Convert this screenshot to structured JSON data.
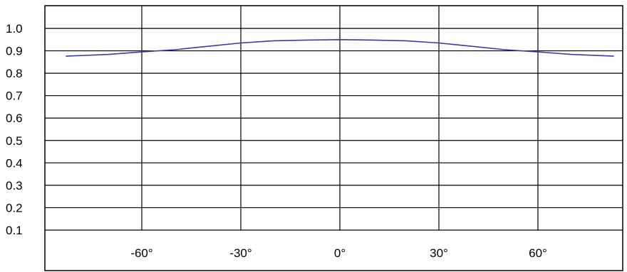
{
  "chart_data": {
    "type": "line",
    "title": "",
    "xlabel": "",
    "ylabel": "",
    "xlim": [
      -90,
      90
    ],
    "ylim": [
      0,
      1.1
    ],
    "grid": true,
    "x_ticks": [
      -60,
      -30,
      0,
      30,
      60
    ],
    "x_tick_labels": [
      "-60°",
      "-30°",
      "0°",
      "30°",
      "60°"
    ],
    "y_ticks": [
      1.0,
      0.9,
      0.8,
      0.7,
      0.6,
      0.5,
      0.4,
      0.3,
      0.2,
      0.1
    ],
    "y_tick_labels": [
      "1.0",
      "0.9",
      "0.8",
      "0.7",
      "0.6",
      "0.5",
      "0.4",
      "0.3",
      "0.2",
      "0.1"
    ],
    "series": [
      {
        "color": "#3a3aa8",
        "x": [
          -83,
          -70,
          -60,
          -50,
          -40,
          -30,
          -20,
          -10,
          0,
          10,
          20,
          30,
          40,
          50,
          60,
          70,
          83
        ],
        "y": [
          0.876,
          0.884,
          0.895,
          0.905,
          0.92,
          0.935,
          0.945,
          0.948,
          0.95,
          0.948,
          0.945,
          0.935,
          0.92,
          0.905,
          0.895,
          0.884,
          0.876
        ]
      }
    ]
  }
}
